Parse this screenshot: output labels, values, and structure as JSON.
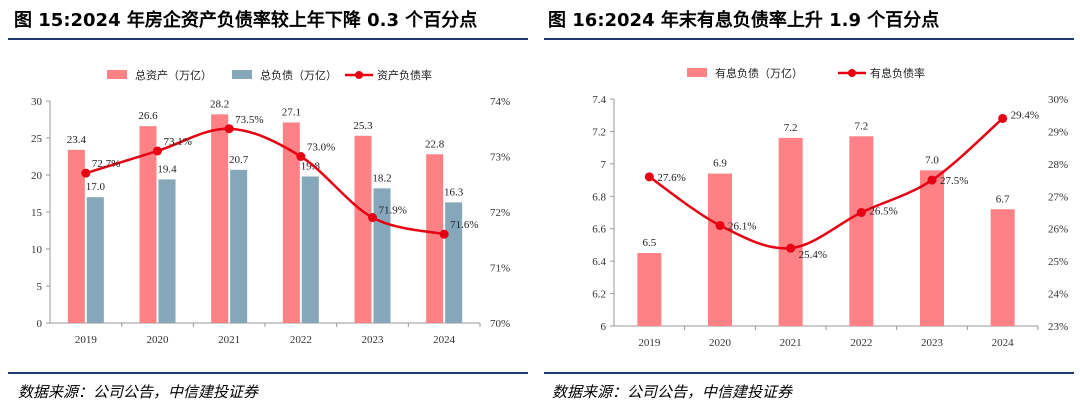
{
  "left": {
    "title": "图 15:2024 年房企资产负债率较上年下降 0.3 个百分点",
    "source": "数据来源：公司公告，中信建投证券"
  },
  "right": {
    "title": "图 16:2024 年末有息负债率上升 1.9 个百分点",
    "source": "数据来源：公司公告，中信建投证券"
  },
  "colors": {
    "bar_pink": "#fd8185",
    "bar_blue": "#86a6ba",
    "line_red": "#e60012",
    "rule": "#1f3a6e"
  },
  "chart_data": [
    {
      "type": "bar+line",
      "categories": [
        "2019",
        "2020",
        "2021",
        "2022",
        "2023",
        "2024"
      ],
      "series": [
        {
          "name": "总资产（万亿）",
          "kind": "bar",
          "axis": "left",
          "color": "#fd8185",
          "values": [
            23.4,
            26.6,
            28.2,
            27.1,
            25.3,
            22.8
          ],
          "labels": [
            "23.4",
            "26.6",
            "28.2",
            "27.1",
            "25.3",
            "22.8"
          ]
        },
        {
          "name": "总负债（万亿）",
          "kind": "bar",
          "axis": "left",
          "color": "#86a6ba",
          "values": [
            17.0,
            19.4,
            20.7,
            19.8,
            18.2,
            16.3
          ],
          "labels": [
            "17.0",
            "19.4",
            "20.7",
            "19.8",
            "18.2",
            "16.3"
          ]
        },
        {
          "name": "资产负债率",
          "kind": "line",
          "axis": "right",
          "color": "#e60012",
          "values": [
            72.7,
            73.1,
            73.5,
            73.0,
            71.9,
            71.6
          ],
          "labels": [
            "72.7%",
            "73.1%",
            "73.5%",
            "73.0%",
            "71.9%",
            "71.6%"
          ]
        }
      ],
      "y_left": {
        "min": 0,
        "max": 30,
        "ticks": [
          "0",
          "5",
          "10",
          "15",
          "20",
          "25",
          "30"
        ]
      },
      "y_right": {
        "min": 70,
        "max": 74,
        "ticks": [
          "70%",
          "71%",
          "72%",
          "73%",
          "74%"
        ]
      },
      "legend_position": "top"
    },
    {
      "type": "bar+line",
      "categories": [
        "2019",
        "2020",
        "2021",
        "2022",
        "2023",
        "2024"
      ],
      "series": [
        {
          "name": "有息负债（万亿）",
          "kind": "bar",
          "axis": "left",
          "color": "#fd8185",
          "values": [
            6.45,
            6.94,
            7.16,
            7.17,
            6.96,
            6.72
          ],
          "labels": [
            "6.5",
            "6.9",
            "7.2",
            "7.2",
            "7.0",
            "6.7"
          ]
        },
        {
          "name": "有息负债率",
          "kind": "line",
          "axis": "right",
          "color": "#e60012",
          "values": [
            27.6,
            26.1,
            25.4,
            26.5,
            27.5,
            29.4
          ],
          "labels": [
            "27.6%",
            "26.1%",
            "25.4%",
            "26.5%",
            "27.5%",
            "29.4%"
          ]
        }
      ],
      "y_left": {
        "min": 6,
        "max": 7.4,
        "ticks": [
          "6",
          "6.2",
          "6.4",
          "6.6",
          "6.8",
          "7",
          "7.2",
          "7.4"
        ]
      },
      "y_right": {
        "min": 23,
        "max": 30,
        "ticks": [
          "23%",
          "24%",
          "25%",
          "26%",
          "27%",
          "28%",
          "29%",
          "30%"
        ]
      },
      "legend_position": "top"
    }
  ]
}
